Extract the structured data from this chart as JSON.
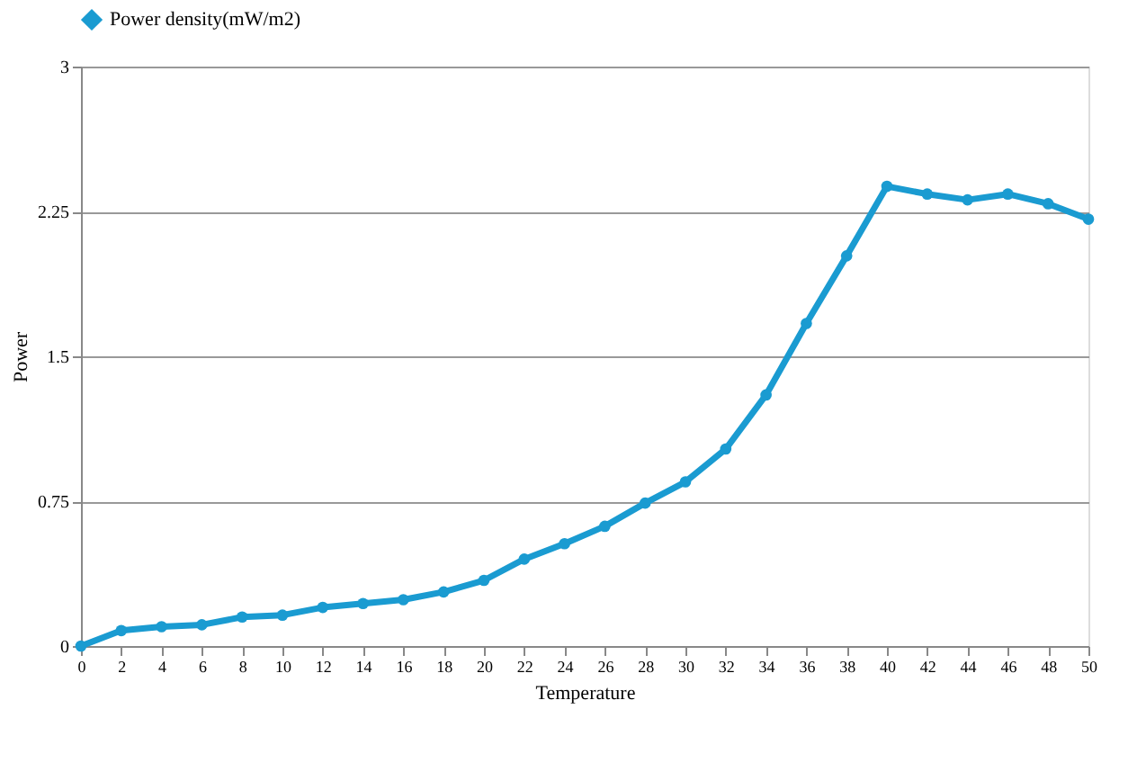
{
  "chart_data": {
    "type": "line",
    "xlabel": "Temperature",
    "ylabel": "Power",
    "x": [
      0,
      2,
      4,
      6,
      8,
      10,
      12,
      14,
      16,
      18,
      20,
      22,
      24,
      26,
      28,
      30,
      32,
      34,
      36,
      38,
      40,
      42,
      44,
      46,
      48,
      50
    ],
    "series": [
      {
        "name": "Power density(mW/m2)",
        "color": "#1a9bd1",
        "values": [
          0,
          0.08,
          0.1,
          0.11,
          0.15,
          0.16,
          0.2,
          0.22,
          0.24,
          0.28,
          0.34,
          0.45,
          0.53,
          0.62,
          0.74,
          0.85,
          1.02,
          1.3,
          1.67,
          2.02,
          2.38,
          2.34,
          2.31,
          2.34,
          2.29,
          2.21
        ]
      }
    ],
    "xlim": [
      0,
      50
    ],
    "xticks": [
      0,
      2,
      4,
      6,
      8,
      10,
      12,
      14,
      16,
      18,
      20,
      22,
      24,
      26,
      28,
      30,
      32,
      34,
      36,
      38,
      40,
      42,
      44,
      46,
      48,
      50
    ],
    "ylim": [
      0,
      3
    ],
    "yticks": [
      0,
      0.75,
      1.5,
      2.25,
      3
    ],
    "grid": "y",
    "legend": "top",
    "marker": "circle",
    "line_style": "solid"
  }
}
